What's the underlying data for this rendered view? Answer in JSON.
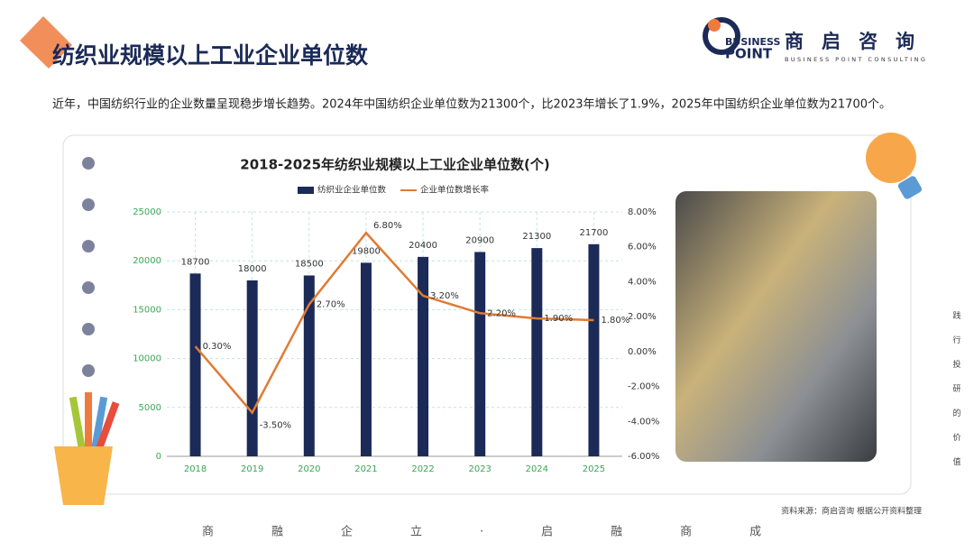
{
  "page": {
    "title": "纺织业规模以上工业企业单位数",
    "description": "近年，中国纺织行业的企业数量呈现稳步增长趋势。2024年中国纺织企业单位数为21300个，比2023年增长了1.9%，2025年中国纺织企业单位数为21700个。",
    "logo_en_top": "BUSINESS",
    "logo_en_bottom": "POINT",
    "logo_cn": "商启咨询",
    "logo_sub": "BUSINESS POINT CONSULTING",
    "source": "资料来源：商启咨询 根据公开资料整理",
    "side_text": "践行投研的价值",
    "footer": "商融企立·启融商成"
  },
  "chart_data": {
    "type": "bar",
    "title": "2018-2025年纺织业规模以上工业企业单位数(个)",
    "categories": [
      "2018",
      "2019",
      "2020",
      "2021",
      "2022",
      "2023",
      "2024",
      "2025"
    ],
    "series": [
      {
        "name": "纺织业企业单位数",
        "color": "#1b2a57",
        "values": [
          18700,
          18000,
          18500,
          19800,
          20400,
          20900,
          21300,
          21700
        ]
      },
      {
        "name": "企业单位数增长率",
        "type": "line",
        "axis": "y2",
        "color": "#e07b35",
        "values": [
          0.3,
          -3.5,
          2.7,
          6.8,
          3.2,
          2.2,
          1.9,
          1.8
        ],
        "value_labels": [
          "0.30%",
          "-3.50%",
          "2.70%",
          "6.80%",
          "3.20%",
          "2.20%",
          "1.90%",
          "1.80%"
        ]
      }
    ],
    "ylim": [
      0,
      25000
    ],
    "yticks": [
      0,
      5000,
      10000,
      15000,
      20000,
      25000
    ],
    "y2lim": [
      -6,
      8
    ],
    "y2ticks": [
      {
        "value": -6,
        "label": "-6.00%"
      },
      {
        "value": -4,
        "label": "-4.00%"
      },
      {
        "value": -2,
        "label": "-2.00%"
      },
      {
        "value": 0,
        "label": "0.00%"
      },
      {
        "value": 2,
        "label": "2.00%"
      },
      {
        "value": 4,
        "label": "4.00%"
      },
      {
        "value": 6,
        "label": "6.00%"
      },
      {
        "value": 8,
        "label": "8.00%"
      }
    ],
    "grid": true,
    "legend": "top"
  }
}
